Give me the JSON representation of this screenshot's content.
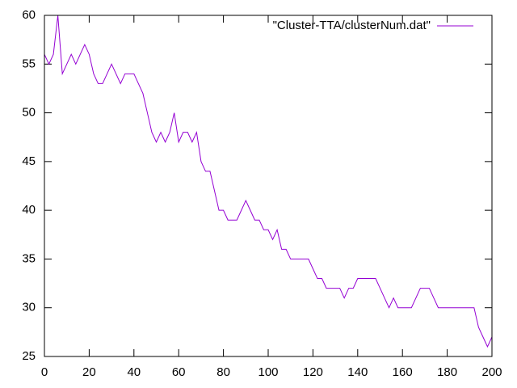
{
  "chart_data": {
    "type": "line",
    "x": [
      0,
      2,
      4,
      6,
      8,
      10,
      12,
      14,
      16,
      18,
      20,
      22,
      24,
      26,
      28,
      30,
      32,
      34,
      36,
      38,
      40,
      42,
      44,
      46,
      48,
      50,
      52,
      54,
      56,
      58,
      60,
      62,
      64,
      66,
      68,
      70,
      72,
      74,
      76,
      78,
      80,
      82,
      84,
      86,
      88,
      90,
      92,
      94,
      96,
      98,
      100,
      102,
      104,
      106,
      108,
      110,
      112,
      114,
      116,
      118,
      120,
      122,
      124,
      126,
      128,
      130,
      132,
      134,
      136,
      138,
      140,
      142,
      144,
      146,
      148,
      150,
      152,
      154,
      156,
      158,
      160,
      162,
      164,
      166,
      168,
      170,
      172,
      174,
      176,
      178,
      180,
      182,
      184,
      186,
      188,
      190,
      192,
      194,
      196,
      198,
      200
    ],
    "series": [
      {
        "name": "\"Cluster-TTA/clusterNum.dat\"",
        "color": "#9400d3",
        "values": [
          56,
          55,
          56,
          60,
          54,
          55,
          56,
          55,
          56,
          57,
          56,
          54,
          53,
          53,
          54,
          55,
          54,
          53,
          54,
          54,
          54,
          53,
          52,
          50,
          48,
          47,
          48,
          47,
          48,
          50,
          47,
          48,
          48,
          47,
          48,
          45,
          44,
          44,
          42,
          40,
          40,
          39,
          39,
          39,
          40,
          41,
          40,
          39,
          39,
          38,
          38,
          37,
          38,
          36,
          36,
          35,
          35,
          35,
          35,
          35,
          34,
          33,
          33,
          32,
          32,
          32,
          32,
          31,
          32,
          32,
          33,
          33,
          33,
          33,
          33,
          32,
          31,
          30,
          31,
          30,
          30,
          30,
          30,
          31,
          32,
          32,
          32,
          31,
          30,
          30,
          30,
          30,
          30,
          30,
          30,
          30,
          30,
          28,
          27,
          26,
          27
        ]
      }
    ],
    "xlim": [
      0,
      200
    ],
    "xticks": [
      0,
      20,
      40,
      60,
      80,
      100,
      120,
      140,
      160,
      180,
      200
    ],
    "ylim": [
      25,
      60
    ],
    "yticks": [
      25,
      30,
      35,
      40,
      45,
      50,
      55,
      60
    ],
    "legend": "top-right"
  }
}
